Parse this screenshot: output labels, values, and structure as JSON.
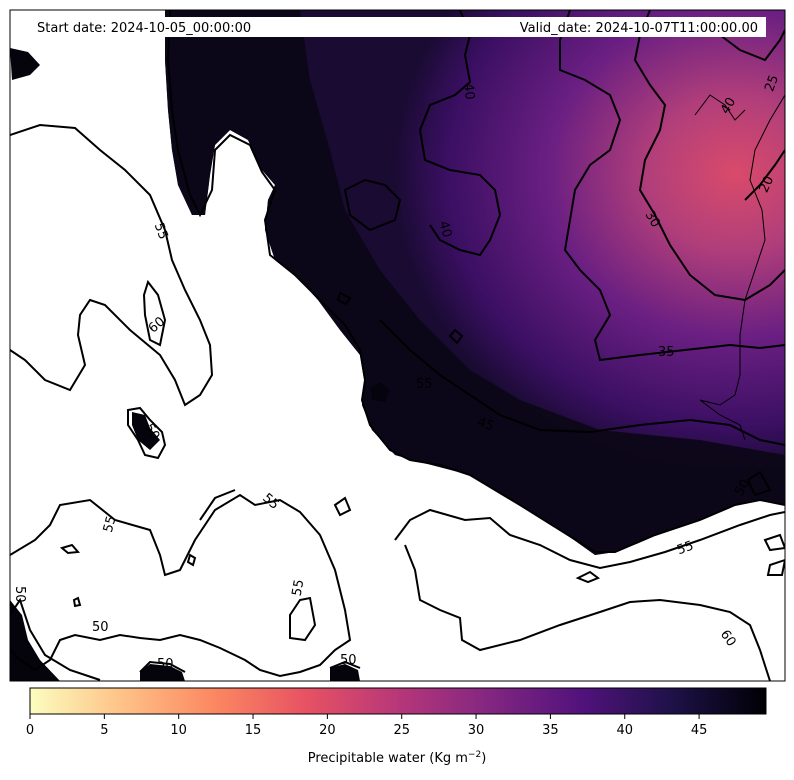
{
  "header": {
    "start_date": "Start date: 2024-10-05_00:00:00",
    "valid_date": "Valid_date: 2024-10-07T11:00:00.00"
  },
  "colormap": {
    "name": "magma_r",
    "stops": [
      "#fcfdbf",
      "#fec287",
      "#fb8861",
      "#e75263",
      "#b73779",
      "#822681",
      "#51127c",
      "#1d1147",
      "#000004"
    ]
  },
  "colorbar": {
    "ticks": [
      "0",
      "5",
      "10",
      "15",
      "20",
      "25",
      "30",
      "35",
      "40",
      "45"
    ],
    "min": 0,
    "max": 49.5,
    "label": "Precipitable water (Kg m",
    "label_exp": "−2",
    "label_close": ")"
  },
  "contour_labels": [
    "55",
    "60",
    "50",
    "55",
    "55",
    "50",
    "55",
    "50",
    "40",
    "40",
    "45",
    "35",
    "30",
    "20",
    "25",
    "50",
    "55",
    "60",
    "50",
    "40",
    "55",
    "50"
  ]
}
